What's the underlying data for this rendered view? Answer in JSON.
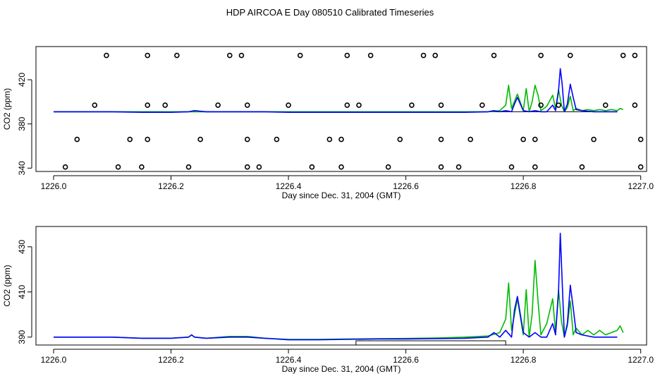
{
  "figure_title": "HDP AIRCOA E  Day 080510  Calibrated Timeseries",
  "colors": {
    "series_blue": "#0000ff",
    "series_green": "#00bb00",
    "frame": "#000000",
    "marker": "#000000"
  },
  "chart_data": [
    {
      "type": "line",
      "panel": "top",
      "xlabel": "Day since Dec. 31, 2004 (GMT)",
      "ylabel": "CO2 (ppm)",
      "xlim": [
        1225.97,
        1227.01
      ],
      "ylim": [
        337,
        450
      ],
      "xticks": [
        1226.0,
        1226.2,
        1226.4,
        1226.6,
        1226.8,
        1227.0
      ],
      "xtick_labels": [
        "1226.0",
        "1226.2",
        "1226.4",
        "1226.6",
        "1226.8",
        "1227.0"
      ],
      "yticks": [
        340,
        380,
        420
      ],
      "ytick_labels": [
        "340",
        "380",
        "420"
      ],
      "reference_line": {
        "y": 391,
        "x_range": [
          1226.0,
          1226.96
        ]
      },
      "series": [
        {
          "name": "blue",
          "x": [
            1226.0,
            1226.05,
            1226.1,
            1226.15,
            1226.2,
            1226.23,
            1226.24,
            1226.26,
            1226.3,
            1226.33,
            1226.36,
            1226.4,
            1226.45,
            1226.5,
            1226.55,
            1226.6,
            1226.65,
            1226.7,
            1226.74,
            1226.75,
            1226.76,
            1226.77,
            1226.78,
            1226.785,
            1226.79,
            1226.8,
            1226.81,
            1226.82,
            1226.83,
            1226.84,
            1226.85,
            1226.855,
            1226.86,
            1226.863,
            1226.866,
            1226.87,
            1226.875,
            1226.88,
            1226.885,
            1226.89,
            1226.9,
            1226.92,
            1226.95,
            1226.96
          ],
          "y": [
            391,
            391,
            391,
            390.5,
            390.5,
            391,
            392,
            391,
            391,
            391,
            391,
            390.5,
            390.5,
            390.5,
            390.5,
            390.5,
            390.5,
            390.5,
            391,
            392,
            391,
            392,
            391,
            398,
            404,
            392,
            391,
            392,
            391,
            391,
            397,
            392,
            410,
            430,
            417,
            391,
            398,
            416,
            404,
            393,
            392,
            391,
            391,
            391
          ]
        },
        {
          "name": "green",
          "x": [
            1226.0,
            1226.1,
            1226.2,
            1226.3,
            1226.4,
            1226.5,
            1226.6,
            1226.7,
            1226.74,
            1226.76,
            1226.77,
            1226.775,
            1226.78,
            1226.79,
            1226.8,
            1226.805,
            1226.81,
            1226.815,
            1226.82,
            1226.825,
            1226.83,
            1226.84,
            1226.85,
            1226.855,
            1226.86,
            1226.865,
            1226.87,
            1226.875,
            1226.88,
            1226.885,
            1226.89,
            1226.9,
            1226.91,
            1226.92,
            1226.93,
            1226.94,
            1226.95,
            1226.96,
            1226.965,
            1226.97
          ],
          "y": [
            391,
            391,
            391,
            391,
            391,
            391,
            391,
            391,
            391,
            392,
            397,
            415,
            394,
            407,
            392,
            412,
            391,
            400,
            415,
            406,
            392,
            396,
            406,
            394,
            411,
            397,
            391,
            395,
            405,
            392,
            394,
            392,
            393,
            392,
            393,
            392,
            393,
            392,
            394,
            393
          ]
        }
      ],
      "markers": {
        "style": "open-circle",
        "points": [
          [
            1226.09,
            442
          ],
          [
            1226.16,
            442
          ],
          [
            1226.21,
            442
          ],
          [
            1226.3,
            442
          ],
          [
            1226.32,
            442
          ],
          [
            1226.42,
            442
          ],
          [
            1226.5,
            442
          ],
          [
            1226.54,
            442
          ],
          [
            1226.63,
            442
          ],
          [
            1226.65,
            442
          ],
          [
            1226.75,
            442
          ],
          [
            1226.83,
            442
          ],
          [
            1226.88,
            442
          ],
          [
            1226.97,
            442
          ],
          [
            1226.99,
            442
          ],
          [
            1226.07,
            397
          ],
          [
            1226.16,
            397
          ],
          [
            1226.19,
            397
          ],
          [
            1226.28,
            397
          ],
          [
            1226.33,
            397
          ],
          [
            1226.4,
            397
          ],
          [
            1226.5,
            397
          ],
          [
            1226.52,
            397
          ],
          [
            1226.61,
            397
          ],
          [
            1226.66,
            397
          ],
          [
            1226.73,
            397
          ],
          [
            1226.83,
            397
          ],
          [
            1226.86,
            397
          ],
          [
            1226.94,
            397
          ],
          [
            1226.99,
            397
          ],
          [
            1226.04,
            366
          ],
          [
            1226.13,
            366
          ],
          [
            1226.16,
            366
          ],
          [
            1226.25,
            366
          ],
          [
            1226.33,
            366
          ],
          [
            1226.38,
            366
          ],
          [
            1226.47,
            366
          ],
          [
            1226.49,
            366
          ],
          [
            1226.59,
            366
          ],
          [
            1226.66,
            366
          ],
          [
            1226.71,
            366
          ],
          [
            1226.8,
            366
          ],
          [
            1226.82,
            366
          ],
          [
            1226.92,
            366
          ],
          [
            1227.0,
            366
          ],
          [
            1226.02,
            341
          ],
          [
            1226.11,
            341
          ],
          [
            1226.15,
            341
          ],
          [
            1226.23,
            341
          ],
          [
            1226.33,
            341
          ],
          [
            1226.35,
            341
          ],
          [
            1226.44,
            341
          ],
          [
            1226.49,
            341
          ],
          [
            1226.57,
            341
          ],
          [
            1226.66,
            341
          ],
          [
            1226.69,
            341
          ],
          [
            1226.78,
            341
          ],
          [
            1226.82,
            341
          ],
          [
            1226.9,
            341
          ],
          [
            1227.0,
            341
          ]
        ]
      }
    },
    {
      "type": "line",
      "panel": "bottom",
      "xlabel": "Day since Dec. 31, 2004 (GMT)",
      "ylabel": "CO2 (ppm)",
      "xlim": [
        1225.97,
        1227.01
      ],
      "ylim": [
        386.5,
        439
      ],
      "xticks": [
        1226.0,
        1226.2,
        1226.4,
        1226.6,
        1226.8,
        1227.0
      ],
      "xtick_labels": [
        "1226.0",
        "1226.2",
        "1226.4",
        "1226.6",
        "1226.8",
        "1227.0"
      ],
      "yticks": [
        390,
        410,
        430
      ],
      "ytick_labels": [
        "390",
        "410",
        "430"
      ],
      "flag_bar": {
        "x_range": [
          1226.515,
          1226.77
        ]
      },
      "series": [
        {
          "name": "blue",
          "x": [
            1226.0,
            1226.05,
            1226.1,
            1226.15,
            1226.2,
            1226.23,
            1226.235,
            1226.24,
            1226.26,
            1226.3,
            1226.33,
            1226.36,
            1226.4,
            1226.45,
            1226.5,
            1226.55,
            1226.6,
            1226.65,
            1226.7,
            1226.74,
            1226.75,
            1226.76,
            1226.77,
            1226.78,
            1226.785,
            1226.79,
            1226.8,
            1226.81,
            1226.82,
            1226.83,
            1226.84,
            1226.85,
            1226.855,
            1226.86,
            1226.863,
            1226.866,
            1226.87,
            1226.875,
            1226.88,
            1226.885,
            1226.89,
            1226.9,
            1226.92,
            1226.95,
            1226.96
          ],
          "y": [
            390,
            390,
            390,
            389.5,
            389.5,
            390,
            391,
            390,
            389.5,
            390,
            390,
            389.5,
            388.8,
            388.8,
            389,
            389.2,
            389.2,
            389.3,
            389.5,
            390,
            392,
            390,
            393,
            390,
            402,
            408,
            392,
            390,
            392,
            390,
            390,
            396,
            391,
            410,
            436,
            416,
            390,
            396,
            413,
            403,
            392,
            391,
            390,
            390,
            390
          ]
        },
        {
          "name": "green",
          "x": [
            1226.0,
            1226.05,
            1226.1,
            1226.15,
            1226.2,
            1226.23,
            1226.235,
            1226.24,
            1226.26,
            1226.3,
            1226.33,
            1226.36,
            1226.4,
            1226.45,
            1226.5,
            1226.55,
            1226.6,
            1226.65,
            1226.7,
            1226.74,
            1226.76,
            1226.77,
            1226.775,
            1226.78,
            1226.79,
            1226.8,
            1226.805,
            1226.81,
            1226.815,
            1226.82,
            1226.825,
            1226.83,
            1226.84,
            1226.85,
            1226.855,
            1226.86,
            1226.865,
            1226.87,
            1226.875,
            1226.88,
            1226.885,
            1226.89,
            1226.9,
            1226.91,
            1226.92,
            1226.93,
            1226.94,
            1226.95,
            1226.96,
            1226.965,
            1226.97
          ],
          "y": [
            390,
            390,
            390,
            389.5,
            389.5,
            390,
            391,
            390,
            389.5,
            390.3,
            390.3,
            389.5,
            389,
            389,
            389.2,
            389.3,
            389.4,
            389.6,
            390,
            390.5,
            392,
            398,
            414,
            393,
            407,
            391,
            411,
            390,
            400,
            424,
            406,
            391,
            396,
            407,
            392,
            411,
            397,
            390,
            395,
            406,
            391,
            394,
            391,
            393,
            391,
            393,
            391,
            392,
            393,
            395,
            392
          ]
        }
      ],
      "markers": {
        "style": "open-circle",
        "points": []
      }
    }
  ]
}
